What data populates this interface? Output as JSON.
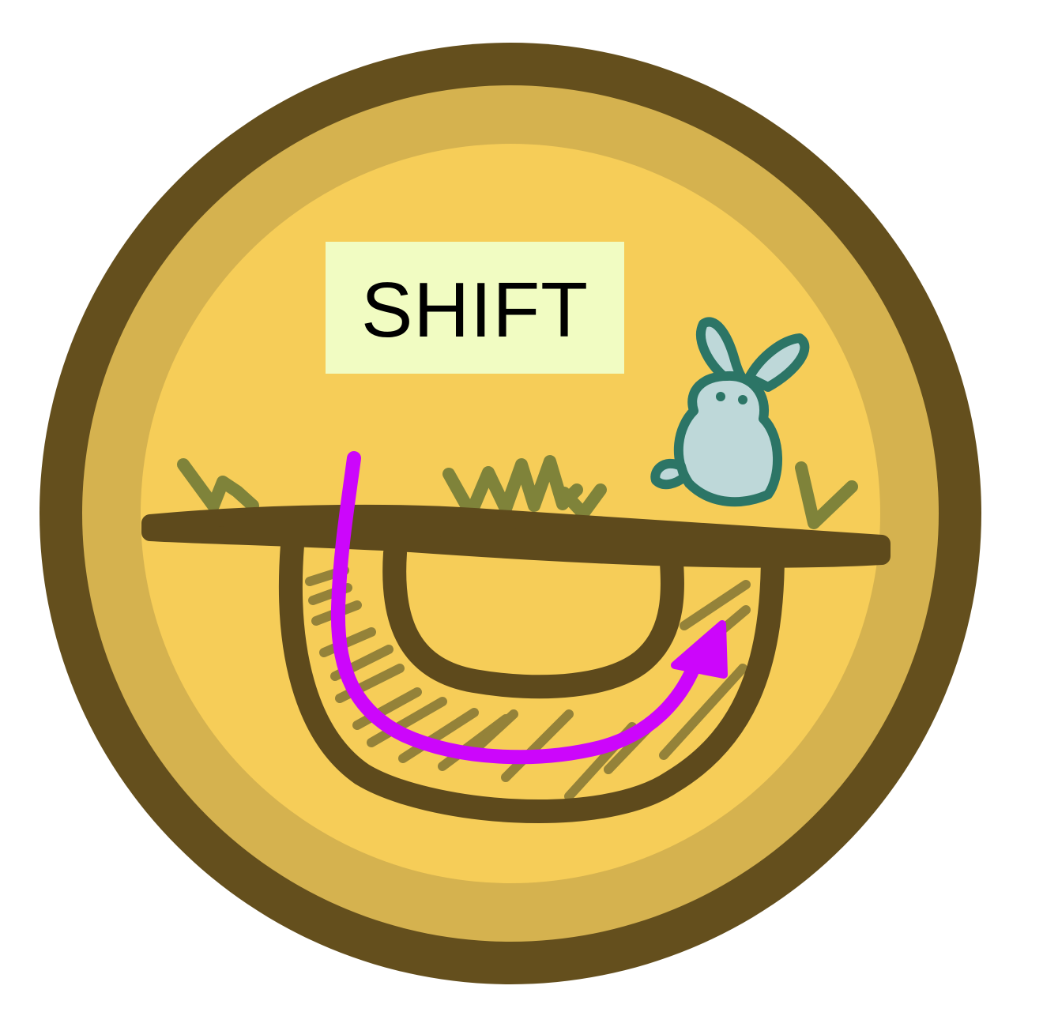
{
  "badge": {
    "label": "SHIFT",
    "icon": "rabbit-burrow-shift-icon"
  },
  "colors": {
    "outer_ring": "#644f1d",
    "mid_ring": "#d5b24f",
    "face": "#f6cd58",
    "label_bg": "#f1fcc2",
    "ground": "#5e4a1c",
    "grass": "#7f833a",
    "tunnel_hatch": "#8a7a36",
    "arrow": "#cc06fb",
    "rabbit_fill": "#bed8d9",
    "rabbit_outline": "#2c7566"
  }
}
